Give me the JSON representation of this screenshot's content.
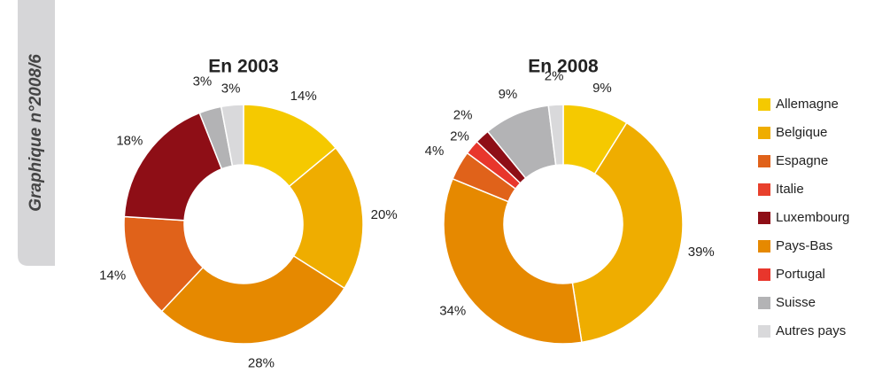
{
  "tab": "Graphique n°2008/6",
  "legend": [
    {
      "name": "Allemagne",
      "color": "#f5c900"
    },
    {
      "name": "Belgique",
      "color": "#efad00"
    },
    {
      "name": "Espagne",
      "color": "#e0621a"
    },
    {
      "name": "Italie",
      "color": "#e8402c"
    },
    {
      "name": "Luxembourg",
      "color": "#8e0e16"
    },
    {
      "name": "Pays-Bas",
      "color": "#e68900"
    },
    {
      "name": "Portugal",
      "color": "#e8362c"
    },
    {
      "name": "Suisse",
      "color": "#b3b3b5"
    },
    {
      "name": "Autres pays",
      "color": "#d9d9db"
    }
  ],
  "chart_data": [
    {
      "type": "donut",
      "title": "En 2003",
      "categories": [
        "Allemagne",
        "Belgique",
        "Pays-Bas",
        "Espagne",
        "Luxembourg",
        "Suisse",
        "Autres pays"
      ],
      "values": [
        14,
        20,
        28,
        14,
        18,
        3,
        3
      ],
      "value_labels": [
        "14%",
        "20%",
        "28%",
        "14%",
        "18%",
        "3%",
        "3%"
      ]
    },
    {
      "type": "donut",
      "title": "En 2008",
      "categories": [
        "Allemagne",
        "Belgique",
        "Pays-Bas",
        "Espagne",
        "Portugal",
        "Luxembourg",
        "Suisse",
        "Autres pays"
      ],
      "values": [
        9,
        39,
        34,
        4,
        2,
        2,
        9,
        2
      ],
      "value_labels": [
        "9%",
        "39%",
        "34%",
        "4%",
        "2%",
        "2%",
        "9%",
        "2%"
      ]
    }
  ]
}
